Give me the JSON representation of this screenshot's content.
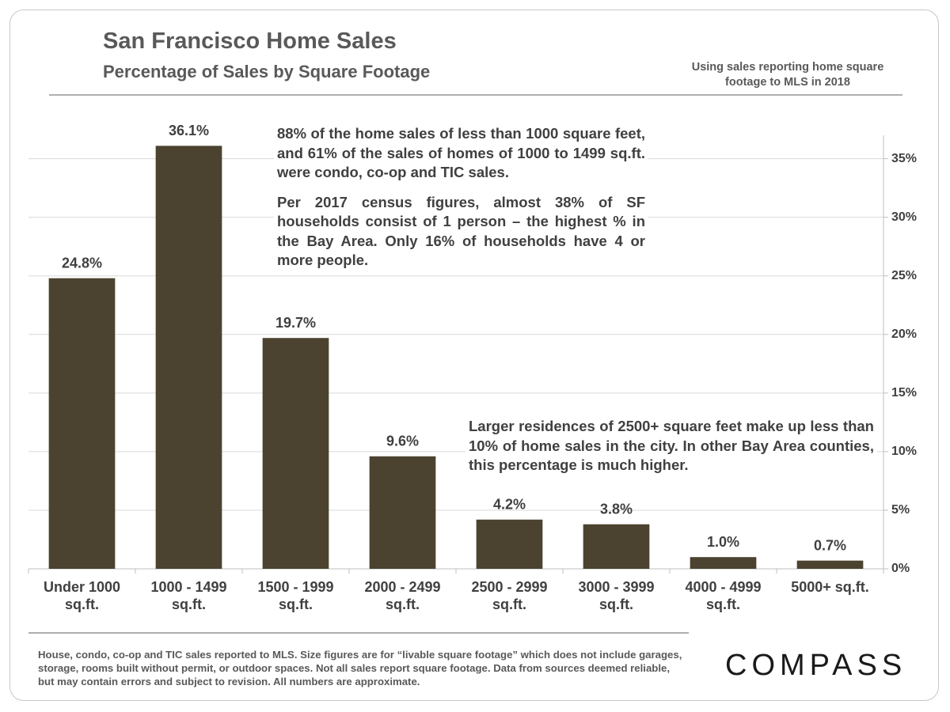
{
  "chart_data": {
    "type": "bar",
    "title": "San Francisco Home Sales",
    "subtitle": "Percentage of Sales by Square Footage",
    "note": "Using sales reporting home square footage to MLS in 2018",
    "categories": [
      "Under 1000\nsq.ft.",
      "1000 - 1499\nsq.ft.",
      "1500 - 1999\nsq.ft.",
      "2000 - 2499\nsq.ft.",
      "2500 - 2999\nsq.ft.",
      "3000 - 3999\nsq.ft.",
      "4000 - 4999\nsq.ft.",
      "5000+ sq.ft."
    ],
    "values": [
      24.8,
      36.1,
      19.7,
      9.6,
      4.2,
      3.8,
      1.0,
      0.7
    ],
    "value_labels": [
      "24.8%",
      "36.1%",
      "19.7%",
      "9.6%",
      "4.2%",
      "3.8%",
      "1.0%",
      "0.7%"
    ],
    "color": "#4b4330",
    "ylim": [
      0,
      37
    ],
    "yticks": [
      {
        "value": 0,
        "label": "0%"
      },
      {
        "value": 5,
        "label": "5%"
      },
      {
        "value": 10,
        "label": "10%"
      },
      {
        "value": 15,
        "label": "15%"
      },
      {
        "value": 20,
        "label": "20%"
      },
      {
        "value": 25,
        "label": "25%"
      },
      {
        "value": 30,
        "label": "30%"
      },
      {
        "value": 35,
        "label": "35%"
      }
    ],
    "grid": true,
    "annotations": [
      [
        "88% of the home sales of less than 1000 square feet, and 61% of the sales of homes of 1000 to 1499 sq.ft. were condo, co-op and TIC sales.",
        "Per 2017 census figures, almost 38% of SF households consist of 1 person – the highest % in the Bay Area. Only 16% of households have 4 or more people."
      ],
      [
        "Larger residences of 2500+ square feet make up less than 10% of home sales in the city. In other Bay Area counties, this percentage is much higher."
      ]
    ],
    "footnote": "House, condo, co-op and TIC sales reported to MLS. Size figures are for “livable square footage” which does not include garages, storage, rooms built without permit, or outdoor spaces. Not all sales report square footage. Data from sources deemed reliable, but may contain errors and subject to revision.  All numbers are approximate.",
    "logo": "COMPASS"
  }
}
